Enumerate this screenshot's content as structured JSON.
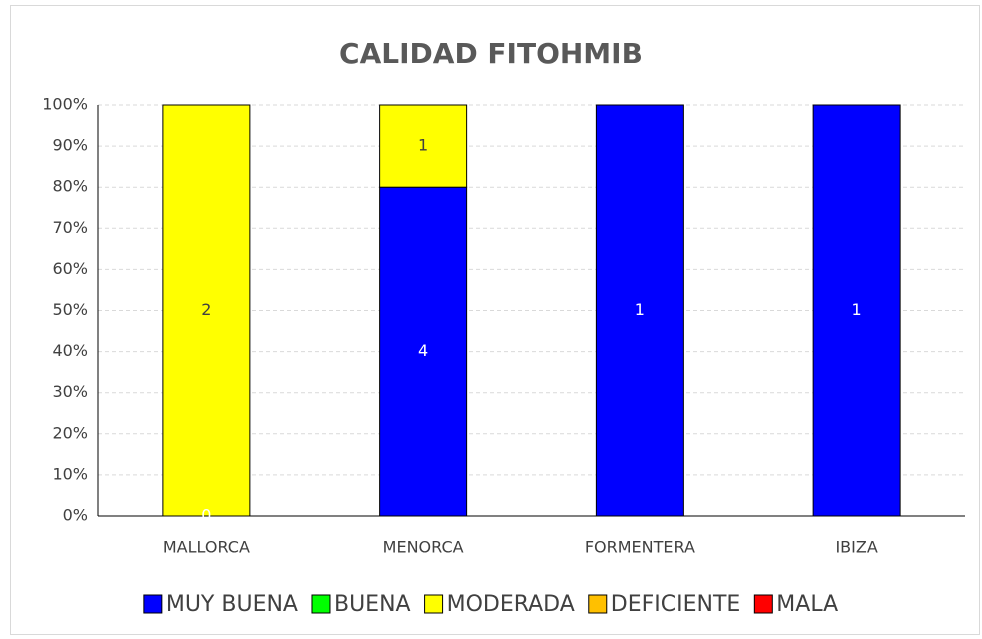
{
  "chart_data": {
    "type": "bar",
    "stacked": "percent",
    "title": "CALIDAD FITOHMIB",
    "categories": [
      "MALLORCA",
      "MENORCA",
      "FORMENTERA",
      "IBIZA"
    ],
    "series": [
      {
        "name": "MUY BUENA",
        "color": "#0000FF",
        "label_color": "#FFFFFF",
        "values": [
          0,
          4,
          1,
          1
        ],
        "value_labels": [
          "0",
          "4",
          "1",
          "1"
        ]
      },
      {
        "name": "BUENA",
        "color": "#00FF00",
        "label_color": "#404040",
        "values": [
          0,
          0,
          0,
          0
        ],
        "value_labels": [
          null,
          null,
          null,
          null
        ]
      },
      {
        "name": "MODERADA",
        "color": "#FFFF00",
        "label_color": "#404040",
        "values": [
          2,
          1,
          0,
          0
        ],
        "value_labels": [
          "2",
          "1",
          null,
          null
        ]
      },
      {
        "name": "DEFICIENTE",
        "color": "#FFC000",
        "label_color": "#404040",
        "values": [
          0,
          0,
          0,
          0
        ],
        "value_labels": [
          null,
          null,
          null,
          null
        ]
      },
      {
        "name": "MALA",
        "color": "#FF0000",
        "label_color": "#FFFFFF",
        "values": [
          0,
          0,
          0,
          0
        ],
        "value_labels": [
          null,
          null,
          null,
          null
        ]
      }
    ],
    "ylim": [
      0,
      100
    ],
    "yticks": [
      {
        "value": 0,
        "label": "0%"
      },
      {
        "value": 10,
        "label": "10%"
      },
      {
        "value": 20,
        "label": "20%"
      },
      {
        "value": 30,
        "label": "30%"
      },
      {
        "value": 40,
        "label": "40%"
      },
      {
        "value": 50,
        "label": "50%"
      },
      {
        "value": 60,
        "label": "60%"
      },
      {
        "value": 70,
        "label": "70%"
      },
      {
        "value": 80,
        "label": "80%"
      },
      {
        "value": 90,
        "label": "90%"
      },
      {
        "value": 100,
        "label": "100%"
      }
    ],
    "grid": true,
    "legend": "bottom"
  }
}
